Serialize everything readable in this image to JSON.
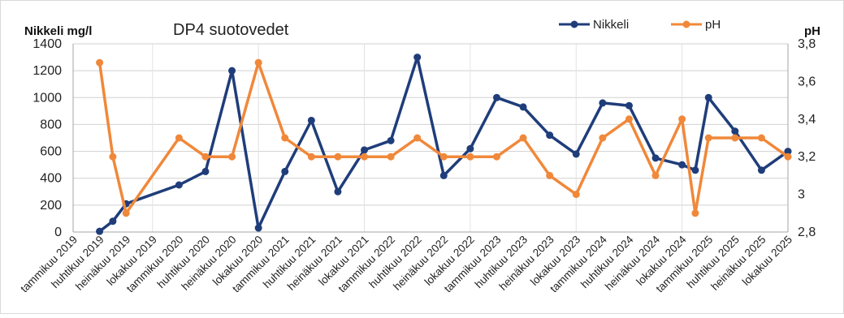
{
  "chart_data": {
    "type": "line",
    "title": "DP4 suotovedet",
    "ylabel": "Nikkeli mg/l",
    "y2label": "pH",
    "ylim": [
      0,
      1400
    ],
    "yticks": [
      0,
      200,
      400,
      600,
      800,
      1000,
      1200,
      1400
    ],
    "y2lim": [
      2.8,
      3.8
    ],
    "y2ticks": [
      "2,8",
      "3",
      "3,2",
      "3,4",
      "3,6",
      "3,8"
    ],
    "grid": true,
    "legend_position": "top-right",
    "x_tick_labels": [
      "tammikuu 2019",
      "huhtikuu 2019",
      "heinäkuu 2019",
      "lokakuu 2019",
      "tammikuu 2020",
      "huhtikuu 2020",
      "heinäkuu 2020",
      "lokakuu 2020",
      "tammikuu 2021",
      "huhtikuu 2021",
      "heinäkuu 2021",
      "lokakuu 2021",
      "tammikuu 2022",
      "huhtikuu 2022",
      "heinäkuu 2022",
      "lokakuu 2022",
      "tammikuu 2023",
      "huhtikuu 2023",
      "heinäkuu 2023",
      "lokakuu 2023",
      "tammikuu 2024",
      "huhtikuu 2024",
      "heinäkuu 2024",
      "lokakuu 2024",
      "tammikuu 2025",
      "huhtikuu 2025",
      "heinäkuu 2025",
      "lokakuu 2025"
    ],
    "series": [
      {
        "name": "Nikkeli",
        "axis": "left",
        "color": "#1f3d7a",
        "points": [
          [
            "huhtikuu 2019",
            5
          ],
          [
            "huhtikuu 2019",
            80
          ],
          [
            "heinäkuu 2019",
            210
          ],
          [
            "tammikuu 2020",
            350
          ],
          [
            "huhtikuu 2020",
            450
          ],
          [
            "heinäkuu 2020",
            1200
          ],
          [
            "lokakuu 2020",
            30
          ],
          [
            "tammikuu 2021",
            450
          ],
          [
            "huhtikuu 2021",
            830
          ],
          [
            "heinäkuu 2021",
            300
          ],
          [
            "lokakuu 2021",
            610
          ],
          [
            "tammikuu 2022",
            680
          ],
          [
            "huhtikuu 2022",
            1300
          ],
          [
            "heinäkuu 2022",
            420
          ],
          [
            "lokakuu 2022",
            620
          ],
          [
            "tammikuu 2023",
            1000
          ],
          [
            "huhtikuu 2023",
            930
          ],
          [
            "heinäkuu 2023",
            720
          ],
          [
            "lokakuu 2023",
            580
          ],
          [
            "tammikuu 2024",
            960
          ],
          [
            "huhtikuu 2024",
            940
          ],
          [
            "heinäkuu 2024",
            550
          ],
          [
            "lokakuu 2024",
            500
          ],
          [
            "lokakuu 2024",
            460
          ],
          [
            "tammikuu 2025",
            1000
          ],
          [
            "huhtikuu 2025",
            750
          ],
          [
            "heinäkuu 2025",
            460
          ],
          [
            "lokakuu 2025",
            600
          ]
        ]
      },
      {
        "name": "pH",
        "axis": "right",
        "color": "#f0883a",
        "points": [
          [
            "huhtikuu 2019",
            3.7
          ],
          [
            "huhtikuu 2019",
            3.2
          ],
          [
            "heinäkuu 2019",
            2.9
          ],
          [
            "tammikuu 2020",
            3.3
          ],
          [
            "huhtikuu 2020",
            3.2
          ],
          [
            "heinäkuu 2020",
            3.2
          ],
          [
            "lokakuu 2020",
            3.7
          ],
          [
            "tammikuu 2021",
            3.3
          ],
          [
            "huhtikuu 2021",
            3.2
          ],
          [
            "heinäkuu 2021",
            3.2
          ],
          [
            "lokakuu 2021",
            3.2
          ],
          [
            "tammikuu 2022",
            3.2
          ],
          [
            "huhtikuu 2022",
            3.3
          ],
          [
            "heinäkuu 2022",
            3.2
          ],
          [
            "lokakuu 2022",
            3.2
          ],
          [
            "tammikuu 2023",
            3.2
          ],
          [
            "huhtikuu 2023",
            3.3
          ],
          [
            "heinäkuu 2023",
            3.1
          ],
          [
            "lokakuu 2023",
            3.0
          ],
          [
            "tammikuu 2024",
            3.3
          ],
          [
            "huhtikuu 2024",
            3.4
          ],
          [
            "heinäkuu 2024",
            3.1
          ],
          [
            "lokakuu 2024",
            3.4
          ],
          [
            "lokakuu 2024",
            2.9
          ],
          [
            "tammikuu 2025",
            3.3
          ],
          [
            "huhtikuu 2025",
            3.3
          ],
          [
            "heinäkuu 2025",
            3.3
          ],
          [
            "lokakuu 2025",
            3.2
          ]
        ]
      }
    ]
  }
}
